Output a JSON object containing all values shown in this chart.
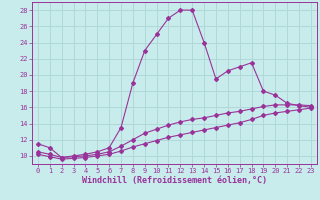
{
  "xlabel": "Windchill (Refroidissement éolien,°C)",
  "background_color": "#c8ecec",
  "grid_color": "#b0d8d8",
  "line_color": "#993399",
  "x": [
    0,
    1,
    2,
    3,
    4,
    5,
    6,
    7,
    8,
    9,
    10,
    11,
    12,
    13,
    14,
    15,
    16,
    17,
    18,
    19,
    20,
    21,
    22,
    23
  ],
  "line1": [
    11.5,
    11.0,
    9.8,
    10.0,
    10.2,
    10.5,
    11.0,
    13.5,
    19.0,
    23.0,
    25.0,
    27.0,
    28.0,
    28.0,
    24.0,
    19.5,
    20.5,
    21.0,
    21.5,
    18.0,
    17.5,
    16.5,
    16.2,
    16.0
  ],
  "line2": [
    10.5,
    10.2,
    9.8,
    9.9,
    10.0,
    10.2,
    10.5,
    11.2,
    12.0,
    12.8,
    13.3,
    13.8,
    14.2,
    14.5,
    14.7,
    15.0,
    15.3,
    15.5,
    15.8,
    16.1,
    16.3,
    16.3,
    16.3,
    16.2
  ],
  "line3": [
    10.2,
    9.9,
    9.6,
    9.7,
    9.8,
    10.0,
    10.2,
    10.6,
    11.1,
    11.5,
    11.9,
    12.3,
    12.6,
    12.9,
    13.2,
    13.5,
    13.8,
    14.1,
    14.5,
    15.0,
    15.3,
    15.5,
    15.7,
    15.9
  ],
  "xlim": [
    -0.5,
    23.5
  ],
  "ylim": [
    9,
    29
  ],
  "yticks": [
    10,
    12,
    14,
    16,
    18,
    20,
    22,
    24,
    26,
    28
  ],
  "xticks": [
    0,
    1,
    2,
    3,
    4,
    5,
    6,
    7,
    8,
    9,
    10,
    11,
    12,
    13,
    14,
    15,
    16,
    17,
    18,
    19,
    20,
    21,
    22,
    23
  ],
  "title_fontsize": 6.5,
  "label_fontsize": 6,
  "tick_fontsize": 5
}
